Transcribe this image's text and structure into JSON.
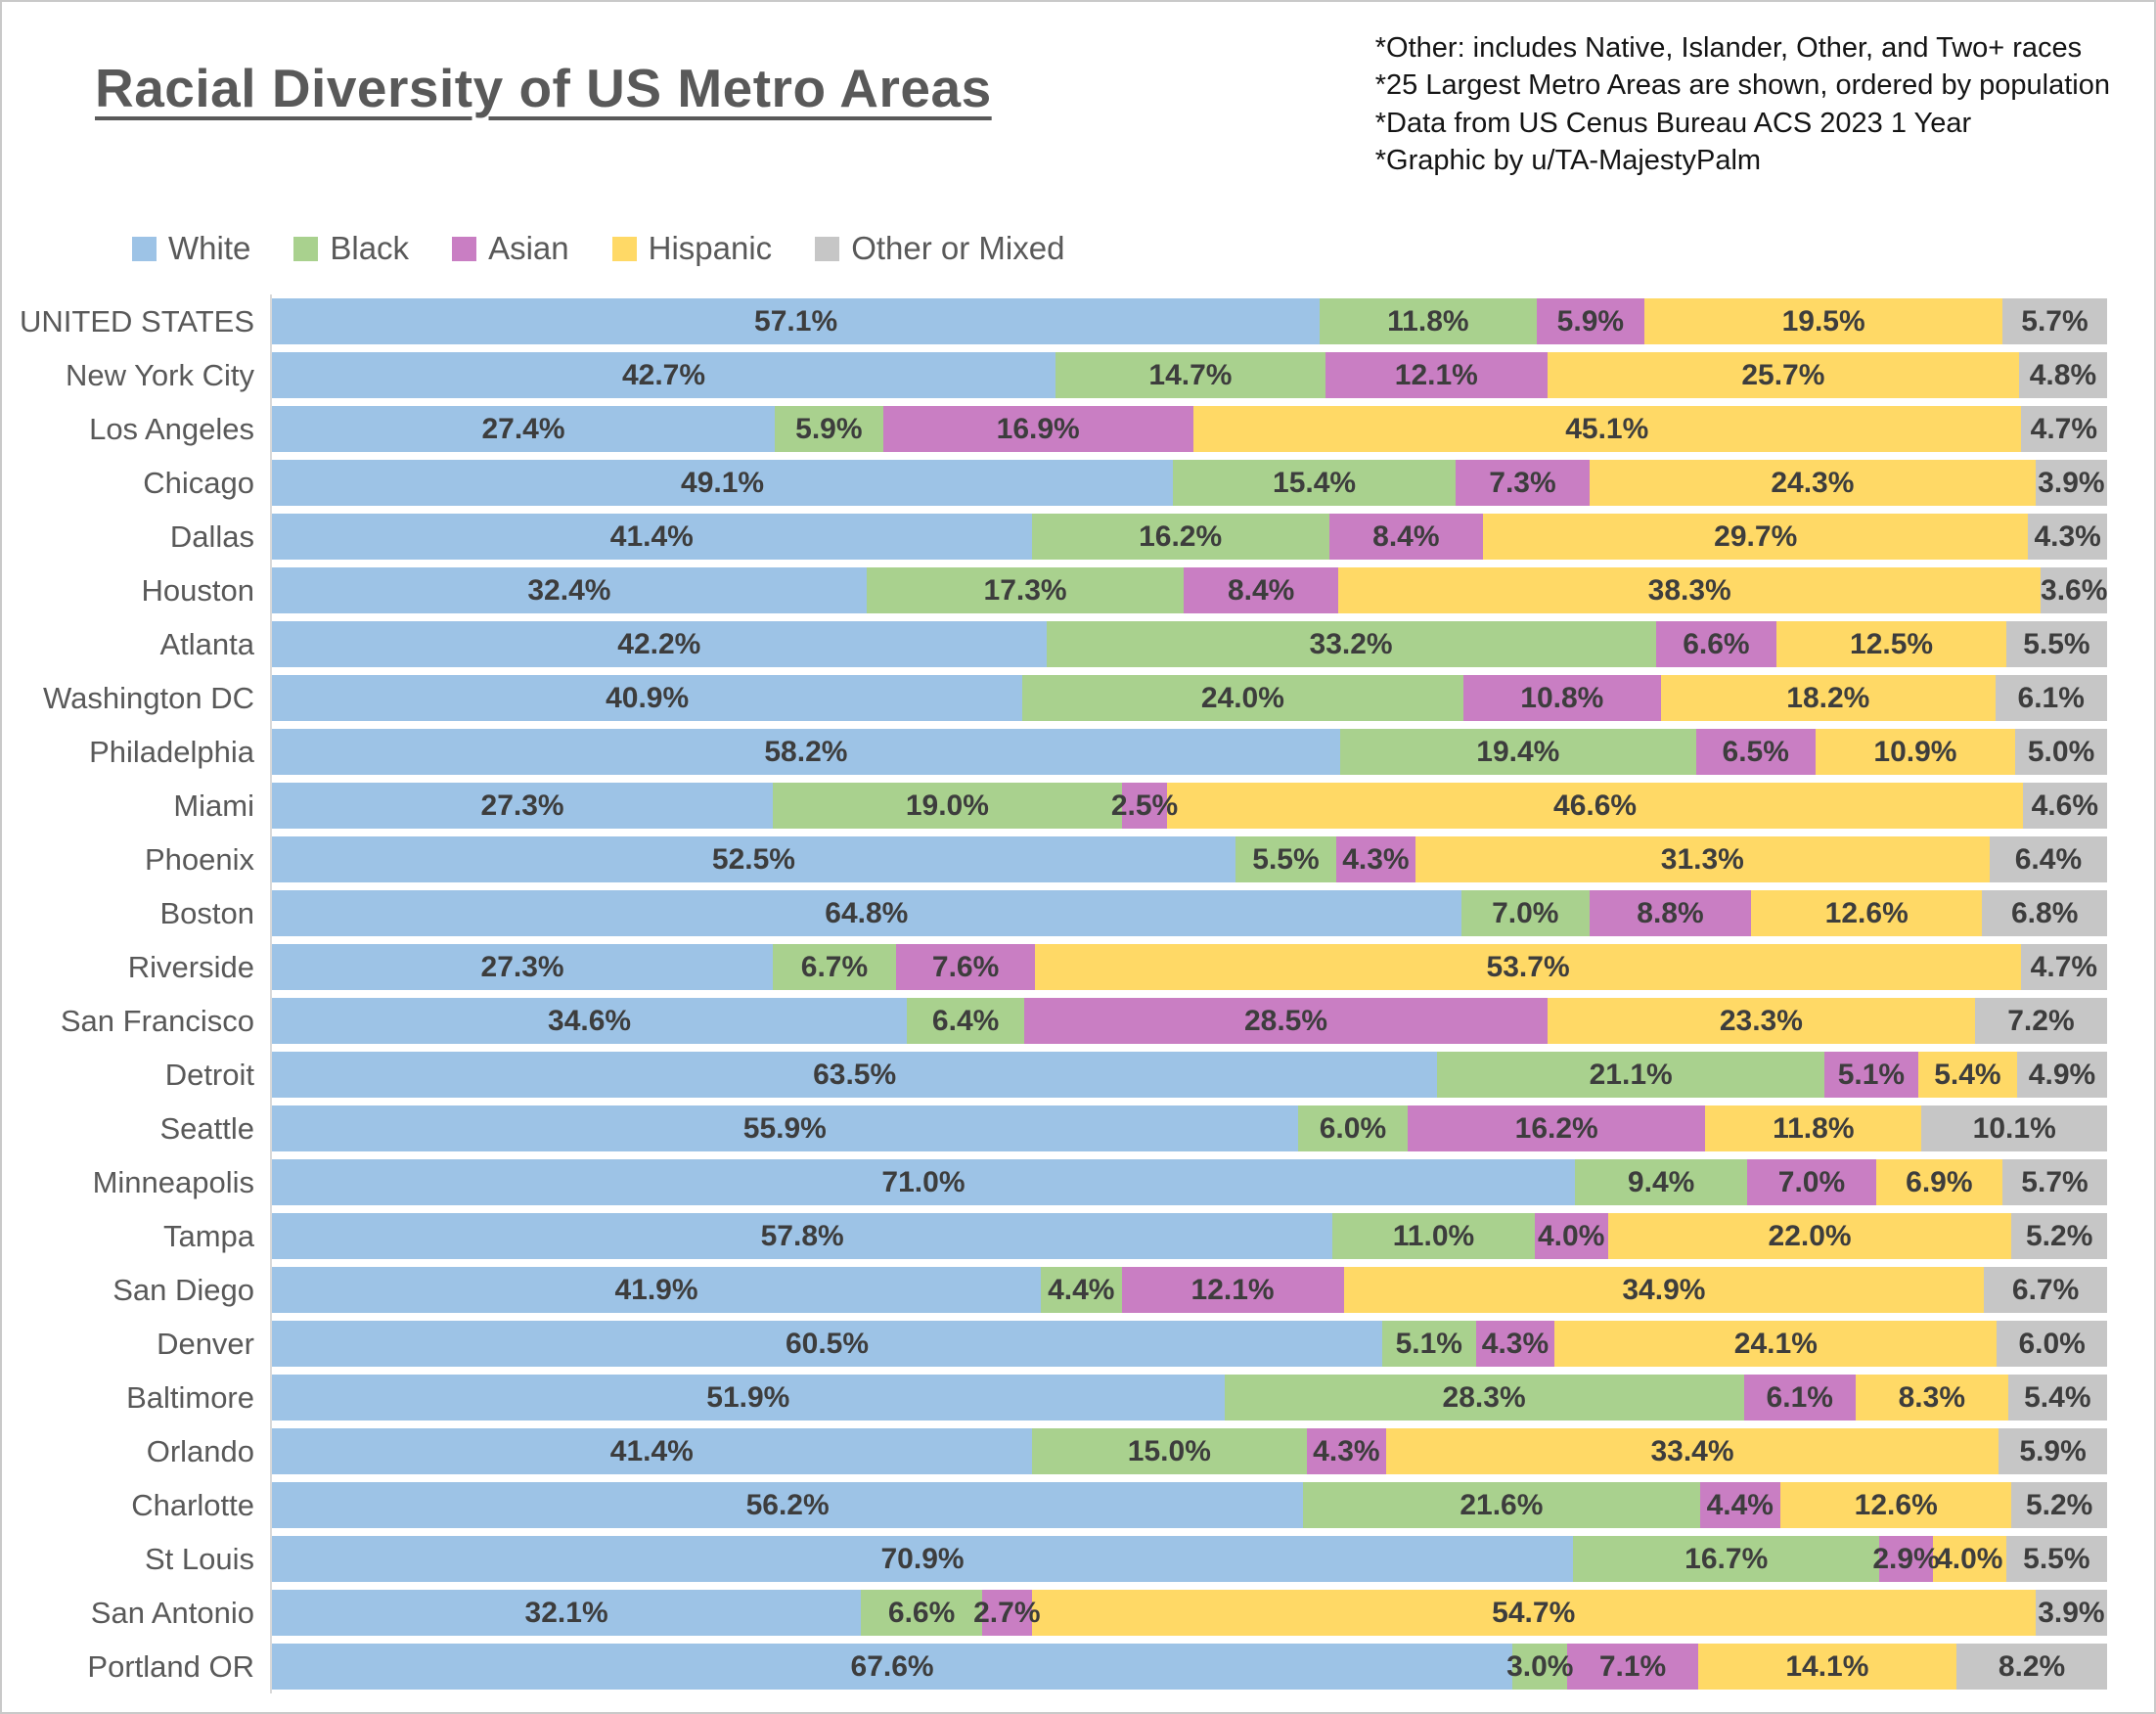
{
  "title": "Racial Diversity of US Metro Areas",
  "notes": [
    "*Other: includes Native, Islander, Other, and Two+ races",
    "*25 Largest Metro Areas are shown, ordered by population",
    "*Data from US Cenus Bureau ACS 2023 1 Year",
    "*Graphic by u/TA-MajestyPalm"
  ],
  "legend": [
    {
      "label": "White",
      "color": "#9DC3E6"
    },
    {
      "label": "Black",
      "color": "#A9D18E"
    },
    {
      "label": "Asian",
      "color": "#C97EC3"
    },
    {
      "label": "Hispanic",
      "color": "#FFD966"
    },
    {
      "label": "Other or Mixed",
      "color": "#C6C6C6"
    }
  ],
  "chart_data": {
    "type": "bar",
    "stacked": true,
    "orientation": "horizontal",
    "unit": "%",
    "xlim": [
      0,
      100
    ],
    "series_names": [
      "White",
      "Black",
      "Asian",
      "Hispanic",
      "Other or Mixed"
    ],
    "colors": [
      "#9DC3E6",
      "#A9D18E",
      "#C97EC3",
      "#FFD966",
      "#C6C6C6"
    ],
    "rows": [
      {
        "label": "UNITED STATES",
        "values": [
          57.1,
          11.8,
          5.9,
          19.5,
          5.7
        ]
      },
      {
        "label": "New York City",
        "values": [
          42.7,
          14.7,
          12.1,
          25.7,
          4.8
        ]
      },
      {
        "label": "Los Angeles",
        "values": [
          27.4,
          5.9,
          16.9,
          45.1,
          4.7
        ]
      },
      {
        "label": "Chicago",
        "values": [
          49.1,
          15.4,
          7.3,
          24.3,
          3.9
        ]
      },
      {
        "label": "Dallas",
        "values": [
          41.4,
          16.2,
          8.4,
          29.7,
          4.3
        ]
      },
      {
        "label": "Houston",
        "values": [
          32.4,
          17.3,
          8.4,
          38.3,
          3.6
        ]
      },
      {
        "label": "Atlanta",
        "values": [
          42.2,
          33.2,
          6.6,
          12.5,
          5.5
        ]
      },
      {
        "label": "Washington DC",
        "values": [
          40.9,
          24.0,
          10.8,
          18.2,
          6.1
        ]
      },
      {
        "label": "Philadelphia",
        "values": [
          58.2,
          19.4,
          6.5,
          10.9,
          5.0
        ]
      },
      {
        "label": "Miami",
        "values": [
          27.3,
          19.0,
          2.5,
          46.6,
          4.6
        ]
      },
      {
        "label": "Phoenix",
        "values": [
          52.5,
          5.5,
          4.3,
          31.3,
          6.4
        ]
      },
      {
        "label": "Boston",
        "values": [
          64.8,
          7.0,
          8.8,
          12.6,
          6.8
        ]
      },
      {
        "label": "Riverside",
        "values": [
          27.3,
          6.7,
          7.6,
          53.7,
          4.7
        ]
      },
      {
        "label": "San Francisco",
        "values": [
          34.6,
          6.4,
          28.5,
          23.3,
          7.2
        ]
      },
      {
        "label": "Detroit",
        "values": [
          63.5,
          21.1,
          5.1,
          5.4,
          4.9
        ]
      },
      {
        "label": "Seattle",
        "values": [
          55.9,
          6.0,
          16.2,
          11.8,
          10.1
        ]
      },
      {
        "label": "Minneapolis",
        "values": [
          71.0,
          9.4,
          7.0,
          6.9,
          5.7
        ]
      },
      {
        "label": "Tampa",
        "values": [
          57.8,
          11.0,
          4.0,
          22.0,
          5.2
        ]
      },
      {
        "label": "San Diego",
        "values": [
          41.9,
          4.4,
          12.1,
          34.9,
          6.7
        ]
      },
      {
        "label": "Denver",
        "values": [
          60.5,
          5.1,
          4.3,
          24.1,
          6.0
        ]
      },
      {
        "label": "Baltimore",
        "values": [
          51.9,
          28.3,
          6.1,
          8.3,
          5.4
        ]
      },
      {
        "label": "Orlando",
        "values": [
          41.4,
          15.0,
          4.3,
          33.4,
          5.9
        ]
      },
      {
        "label": "Charlotte",
        "values": [
          56.2,
          21.6,
          4.4,
          12.6,
          5.2
        ]
      },
      {
        "label": "St Louis",
        "values": [
          70.9,
          16.7,
          2.9,
          4.0,
          5.5
        ]
      },
      {
        "label": "San Antonio",
        "values": [
          32.1,
          6.6,
          2.7,
          54.7,
          3.9
        ]
      },
      {
        "label": "Portland OR",
        "values": [
          67.6,
          3.0,
          7.1,
          14.1,
          8.2
        ]
      }
    ]
  }
}
